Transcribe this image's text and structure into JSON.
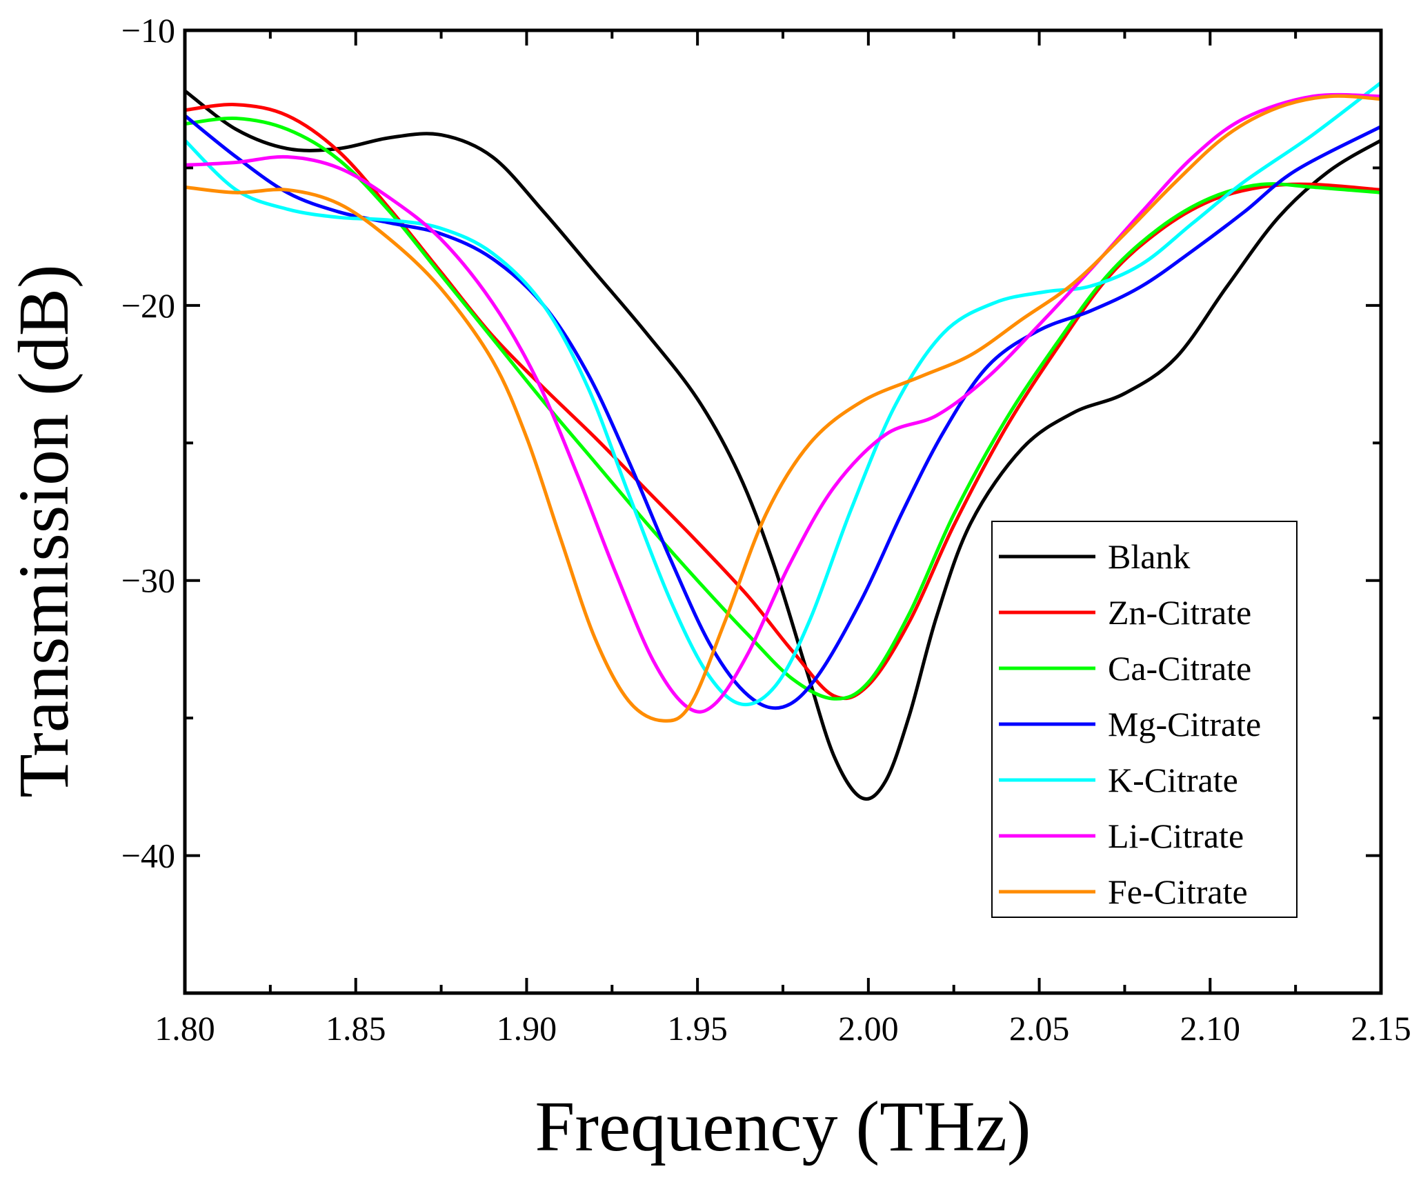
{
  "chart_data": {
    "type": "line",
    "title": "",
    "xlabel": "Frequency (THz)",
    "ylabel": "Transmission (dB)",
    "xlim": [
      1.8,
      2.15
    ],
    "ylim": [
      -45,
      -10
    ],
    "x_ticks": [
      1.8,
      1.85,
      1.9,
      1.95,
      2.0,
      2.05,
      2.1,
      2.15
    ],
    "x_tick_labels": [
      "1.80",
      "1.85",
      "1.90",
      "1.95",
      "2.00",
      "2.05",
      "2.10",
      "2.15"
    ],
    "y_ticks": [
      -10,
      -20,
      -30,
      -40
    ],
    "y_tick_labels": [
      "−10",
      "−20",
      "−30",
      "−40"
    ],
    "grid": false,
    "legend_position": "right",
    "series": [
      {
        "name": "Blank",
        "color": "#000000",
        "points": [
          [
            1.8,
            -12.2
          ],
          [
            1.815,
            -13.6
          ],
          [
            1.83,
            -14.3
          ],
          [
            1.845,
            -14.3
          ],
          [
            1.86,
            -13.9
          ],
          [
            1.875,
            -13.8
          ],
          [
            1.89,
            -14.6
          ],
          [
            1.905,
            -16.6
          ],
          [
            1.92,
            -18.8
          ],
          [
            1.935,
            -21.0
          ],
          [
            1.95,
            -23.4
          ],
          [
            1.962,
            -26.1
          ],
          [
            1.972,
            -29.3
          ],
          [
            1.982,
            -33.3
          ],
          [
            1.99,
            -36.4
          ],
          [
            1.998,
            -37.9
          ],
          [
            2.005,
            -37.3
          ],
          [
            2.012,
            -34.9
          ],
          [
            2.02,
            -31.3
          ],
          [
            2.03,
            -27.9
          ],
          [
            2.045,
            -25.2
          ],
          [
            2.06,
            -23.9
          ],
          [
            2.075,
            -23.2
          ],
          [
            2.09,
            -21.9
          ],
          [
            2.105,
            -19.3
          ],
          [
            2.12,
            -16.8
          ],
          [
            2.135,
            -15.1
          ],
          [
            2.15,
            -14.0
          ]
        ]
      },
      {
        "name": "Zn-Citrate",
        "color": "#ff0000",
        "points": [
          [
            1.8,
            -12.9
          ],
          [
            1.815,
            -12.7
          ],
          [
            1.83,
            -13.1
          ],
          [
            1.845,
            -14.4
          ],
          [
            1.86,
            -16.5
          ],
          [
            1.875,
            -18.8
          ],
          [
            1.89,
            -21.1
          ],
          [
            1.905,
            -23.0
          ],
          [
            1.92,
            -24.8
          ],
          [
            1.935,
            -26.7
          ],
          [
            1.95,
            -28.6
          ],
          [
            1.965,
            -30.6
          ],
          [
            1.978,
            -32.6
          ],
          [
            1.99,
            -34.2
          ],
          [
            2.0,
            -33.8
          ],
          [
            2.012,
            -31.5
          ],
          [
            2.025,
            -28.0
          ],
          [
            2.04,
            -24.5
          ],
          [
            2.055,
            -21.6
          ],
          [
            2.07,
            -19.0
          ],
          [
            2.085,
            -17.3
          ],
          [
            2.1,
            -16.2
          ],
          [
            2.115,
            -15.7
          ],
          [
            2.13,
            -15.6
          ],
          [
            2.15,
            -15.8
          ]
        ]
      },
      {
        "name": "Ca-Citrate",
        "color": "#00ff00",
        "points": [
          [
            1.8,
            -13.4
          ],
          [
            1.815,
            -13.2
          ],
          [
            1.83,
            -13.6
          ],
          [
            1.845,
            -14.7
          ],
          [
            1.86,
            -16.6
          ],
          [
            1.875,
            -18.9
          ],
          [
            1.89,
            -21.2
          ],
          [
            1.905,
            -23.5
          ],
          [
            1.92,
            -25.7
          ],
          [
            1.935,
            -27.9
          ],
          [
            1.95,
            -30.0
          ],
          [
            1.965,
            -32.0
          ],
          [
            1.978,
            -33.6
          ],
          [
            1.99,
            -34.3
          ],
          [
            2.0,
            -33.7
          ],
          [
            2.012,
            -31.2
          ],
          [
            2.025,
            -27.6
          ],
          [
            2.04,
            -24.2
          ],
          [
            2.055,
            -21.4
          ],
          [
            2.07,
            -18.9
          ],
          [
            2.085,
            -17.2
          ],
          [
            2.1,
            -16.1
          ],
          [
            2.115,
            -15.6
          ],
          [
            2.13,
            -15.7
          ],
          [
            2.15,
            -15.9
          ]
        ]
      },
      {
        "name": "Mg-Citrate",
        "color": "#0000ff",
        "points": [
          [
            1.8,
            -13.1
          ],
          [
            1.815,
            -14.6
          ],
          [
            1.83,
            -15.9
          ],
          [
            1.845,
            -16.6
          ],
          [
            1.86,
            -17.0
          ],
          [
            1.875,
            -17.4
          ],
          [
            1.89,
            -18.3
          ],
          [
            1.905,
            -20.0
          ],
          [
            1.918,
            -22.5
          ],
          [
            1.93,
            -25.7
          ],
          [
            1.942,
            -29.2
          ],
          [
            1.954,
            -32.4
          ],
          [
            1.965,
            -34.2
          ],
          [
            1.975,
            -34.6
          ],
          [
            1.985,
            -33.5
          ],
          [
            1.998,
            -30.7
          ],
          [
            2.01,
            -27.5
          ],
          [
            2.022,
            -24.6
          ],
          [
            2.035,
            -22.2
          ],
          [
            2.05,
            -20.9
          ],
          [
            2.065,
            -20.2
          ],
          [
            2.08,
            -19.3
          ],
          [
            2.095,
            -18.0
          ],
          [
            2.11,
            -16.6
          ],
          [
            2.125,
            -15.1
          ],
          [
            2.15,
            -13.5
          ]
        ]
      },
      {
        "name": "K-Citrate",
        "color": "#00ffff",
        "points": [
          [
            1.8,
            -14.0
          ],
          [
            1.815,
            -15.8
          ],
          [
            1.83,
            -16.5
          ],
          [
            1.845,
            -16.8
          ],
          [
            1.86,
            -16.9
          ],
          [
            1.875,
            -17.2
          ],
          [
            1.89,
            -18.1
          ],
          [
            1.905,
            -20.0
          ],
          [
            1.918,
            -23.0
          ],
          [
            1.93,
            -26.9
          ],
          [
            1.942,
            -30.7
          ],
          [
            1.953,
            -33.4
          ],
          [
            1.963,
            -34.5
          ],
          [
            1.973,
            -33.8
          ],
          [
            1.983,
            -31.4
          ],
          [
            1.995,
            -27.4
          ],
          [
            2.008,
            -23.6
          ],
          [
            2.022,
            -21.0
          ],
          [
            2.037,
            -19.9
          ],
          [
            2.052,
            -19.5
          ],
          [
            2.065,
            -19.3
          ],
          [
            2.08,
            -18.5
          ],
          [
            2.095,
            -17.0
          ],
          [
            2.11,
            -15.5
          ],
          [
            2.13,
            -13.8
          ],
          [
            2.15,
            -11.9
          ]
        ]
      },
      {
        "name": "Li-Citrate",
        "color": "#ff00ff",
        "points": [
          [
            1.8,
            -14.9
          ],
          [
            1.815,
            -14.8
          ],
          [
            1.83,
            -14.6
          ],
          [
            1.845,
            -15.0
          ],
          [
            1.86,
            -16.1
          ],
          [
            1.875,
            -17.6
          ],
          [
            1.89,
            -19.9
          ],
          [
            1.903,
            -22.7
          ],
          [
            1.915,
            -26.2
          ],
          [
            1.926,
            -29.7
          ],
          [
            1.937,
            -32.9
          ],
          [
            1.947,
            -34.6
          ],
          [
            1.955,
            -34.5
          ],
          [
            1.965,
            -32.6
          ],
          [
            1.977,
            -29.4
          ],
          [
            1.99,
            -26.6
          ],
          [
            2.005,
            -24.7
          ],
          [
            2.02,
            -24.0
          ],
          [
            2.035,
            -22.6
          ],
          [
            2.05,
            -20.7
          ],
          [
            2.065,
            -18.7
          ],
          [
            2.08,
            -16.6
          ],
          [
            2.095,
            -14.6
          ],
          [
            2.11,
            -13.2
          ],
          [
            2.13,
            -12.4
          ],
          [
            2.15,
            -12.4
          ]
        ]
      },
      {
        "name": "Fe-Citrate",
        "color": "#ff8c00",
        "points": [
          [
            1.8,
            -15.7
          ],
          [
            1.815,
            -15.9
          ],
          [
            1.83,
            -15.8
          ],
          [
            1.845,
            -16.3
          ],
          [
            1.86,
            -17.6
          ],
          [
            1.875,
            -19.4
          ],
          [
            1.89,
            -22.0
          ],
          [
            1.9,
            -24.8
          ],
          [
            1.91,
            -28.5
          ],
          [
            1.92,
            -32.1
          ],
          [
            1.93,
            -34.4
          ],
          [
            1.94,
            -35.1
          ],
          [
            1.948,
            -34.5
          ],
          [
            1.958,
            -31.5
          ],
          [
            1.97,
            -27.6
          ],
          [
            1.983,
            -25.0
          ],
          [
            1.998,
            -23.5
          ],
          [
            2.015,
            -22.6
          ],
          [
            2.03,
            -21.8
          ],
          [
            2.045,
            -20.5
          ],
          [
            2.06,
            -19.2
          ],
          [
            2.075,
            -17.4
          ],
          [
            2.09,
            -15.5
          ],
          [
            2.105,
            -13.8
          ],
          [
            2.12,
            -12.8
          ],
          [
            2.135,
            -12.4
          ],
          [
            2.15,
            -12.5
          ]
        ]
      }
    ]
  }
}
